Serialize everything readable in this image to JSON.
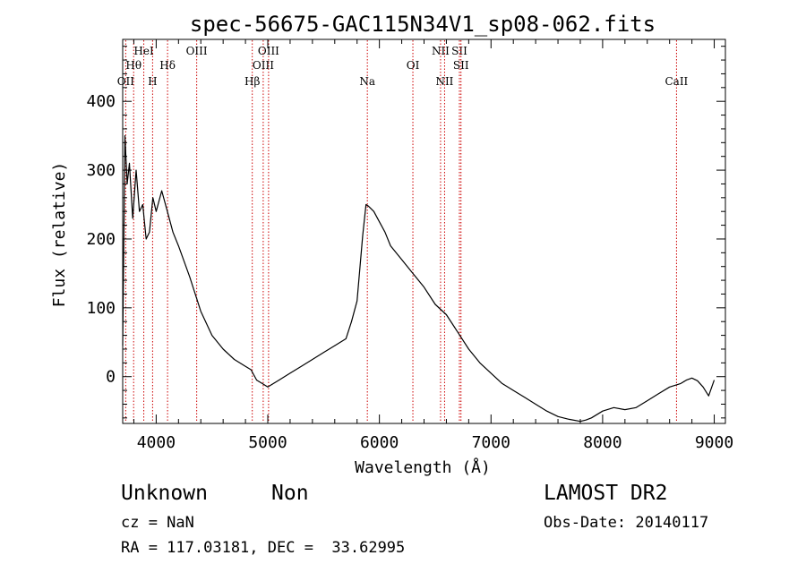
{
  "chart_data": {
    "type": "line",
    "title": "spec-56675-GAC115N34V1_sp08-062.fits",
    "xlabel": "Wavelength (Å)",
    "ylabel": "Flux (relative)",
    "xlim": [
      3700,
      9100
    ],
    "ylim": [
      -68,
      490
    ],
    "x_ticks": [
      4000,
      5000,
      6000,
      7000,
      8000,
      9000
    ],
    "x_tick_labels": [
      "4000",
      "5000",
      "6000",
      "7000",
      "8000",
      "9000"
    ],
    "y_ticks": [
      0,
      100,
      200,
      300,
      400
    ],
    "y_tick_labels": [
      "0",
      "100",
      "200",
      "300",
      "400"
    ],
    "grid": false,
    "series": [
      {
        "x": [
          3700,
          3720,
          3740,
          3760,
          3790,
          3820,
          3850,
          3880,
          3910,
          3940,
          3970,
          4000,
          4050,
          4100,
          4150,
          4200,
          4300,
          4400,
          4500,
          4600,
          4700,
          4800,
          4850,
          4900,
          4950,
          5000,
          5100,
          5200,
          5300,
          5400,
          5500,
          5600,
          5700,
          5750,
          5800,
          5850,
          5880,
          5900,
          5950,
          6000,
          6050,
          6100,
          6200,
          6300,
          6400,
          6500,
          6600,
          6700,
          6800,
          6900,
          7000,
          7100,
          7200,
          7300,
          7400,
          7500,
          7600,
          7700,
          7800,
          7850,
          7900,
          8000,
          8100,
          8200,
          8300,
          8400,
          8500,
          8600,
          8700,
          8750,
          8800,
          8850,
          8900,
          8950,
          9000
        ],
        "y": [
          45,
          350,
          280,
          310,
          230,
          300,
          240,
          250,
          200,
          210,
          260,
          240,
          270,
          240,
          210,
          190,
          145,
          95,
          60,
          40,
          25,
          15,
          10,
          -5,
          -10,
          -15,
          -5,
          5,
          15,
          25,
          35,
          45,
          55,
          80,
          110,
          205,
          250,
          248,
          240,
          225,
          210,
          190,
          170,
          150,
          130,
          105,
          90,
          65,
          40,
          20,
          5,
          -10,
          -20,
          -30,
          -40,
          -50,
          -58,
          -62,
          -65,
          -63,
          -60,
          -50,
          -45,
          -48,
          -45,
          -35,
          -25,
          -15,
          -10,
          -5,
          -2,
          -6,
          -15,
          -28,
          -5
        ]
      }
    ],
    "line_marks": [
      {
        "label": "OII",
        "x": 3727,
        "row": 3
      },
      {
        "label": "Hθ",
        "x": 3798,
        "row": 2
      },
      {
        "label": "HeI",
        "x": 3889,
        "row": 1
      },
      {
        "label": "H",
        "x": 3968,
        "row": 3
      },
      {
        "label": "Hδ",
        "x": 4102,
        "row": 2
      },
      {
        "label": "OIII",
        "x": 4363,
        "row": 1
      },
      {
        "label": "Hβ",
        "x": 4861,
        "row": 3
      },
      {
        "label": "OIII",
        "x": 4959,
        "row": 2
      },
      {
        "label": "OIII",
        "x": 5007,
        "row": 1
      },
      {
        "label": "Na",
        "x": 5892,
        "row": 3
      },
      {
        "label": "OI",
        "x": 6300,
        "row": 2
      },
      {
        "label": "NII",
        "x": 6548,
        "row": 1
      },
      {
        "label": "NII",
        "x": 6584,
        "row": 3
      },
      {
        "label": "SII",
        "x": 6717,
        "row": 1
      },
      {
        "label": "SII",
        "x": 6731,
        "row": 2
      },
      {
        "label": "CaII",
        "x": 8662,
        "row": 3
      }
    ]
  },
  "info": {
    "object_type": "Unknown",
    "object_class": "Non",
    "cz": "cz = NaN",
    "coords": "RA = 117.03181, DEC =  33.62995",
    "survey": "LAMOST DR2",
    "obs_date": "Obs-Date: 20140117"
  },
  "colors": {
    "line_mark": "#cc0000",
    "spectrum": "#000000",
    "axes": "#000000"
  }
}
